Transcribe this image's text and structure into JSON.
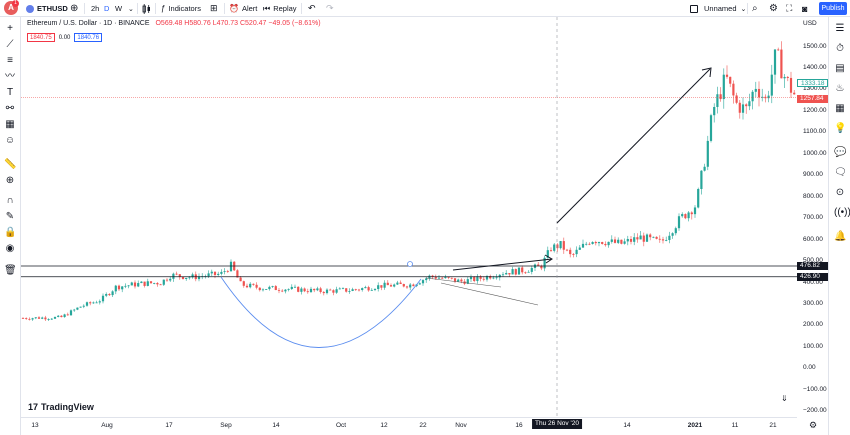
{
  "toolbar": {
    "symbol": "ETHUSD",
    "interval": "2h",
    "interval_d": "D",
    "interval_w": "W",
    "indicators_label": "Indicators",
    "alert_label": "Alert",
    "replay_label": "Replay",
    "layout_name": "Unnamed",
    "publish_label": "Publish",
    "notification_count": "1"
  },
  "legend": {
    "title": "Ethereum / U.S. Dollar · 1D · BINANCE",
    "open": "O569.48",
    "high": "H580.76",
    "low": "L470.73",
    "close": "C520.47",
    "change": "−49.05 (−8.61%)",
    "input_left": "1840.75",
    "input_mid": "0.00",
    "input_right": "1840.76"
  },
  "price_axis": {
    "currency": "USD",
    "ticks": [
      "1500.00",
      "1400.00",
      "1300.00",
      "1200.00",
      "1100.00",
      "1000.00",
      "900.00",
      "800.00",
      "700.00",
      "600.00",
      "500.00",
      "400.00",
      "300.00",
      "200.00",
      "100.00",
      "0.00",
      "−100.00",
      "−200.00"
    ],
    "label_upper": "1333.18",
    "label_current": "1257.84",
    "label_hline1": "476.82",
    "label_hline2": "426.90"
  },
  "time_axis": {
    "ticks": [
      "13",
      "Aug",
      "17",
      "Sep",
      "14",
      "Oct",
      "12",
      "22",
      "Nov",
      "16",
      "14",
      "2021",
      "11",
      "21"
    ],
    "crosshair_date": "Thu 26 Nov '20"
  },
  "branding": {
    "name": "TradingView"
  },
  "colors": {
    "up": "#26a69a",
    "down": "#ef5350",
    "accent": "#2962ff",
    "curve": "#5b8def"
  },
  "chart_data": {
    "type": "candlestick",
    "ylim": [
      -200,
      1500
    ],
    "horizontal_lines": [
      476.82,
      426.9
    ],
    "current_price": 1257.84,
    "last_close": 520.47
  }
}
